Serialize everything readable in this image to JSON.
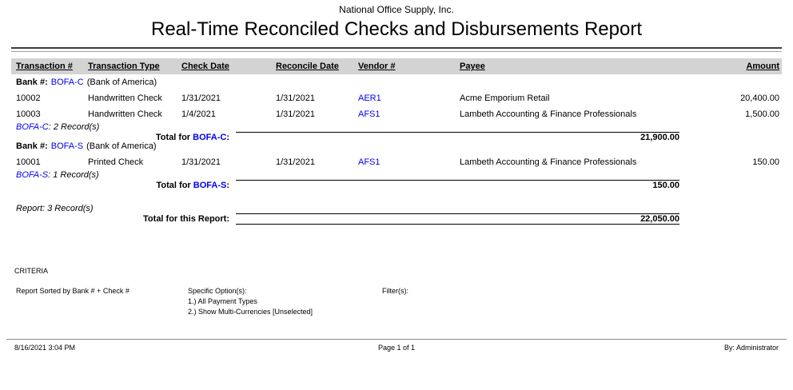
{
  "report": {
    "company": "National Office Supply, Inc.",
    "title": "Real-Time Reconciled Checks and Disbursements Report"
  },
  "colors": {
    "link_blue": "#0000f0",
    "header_band_gray": "#d3d3d3"
  },
  "table": {
    "columns": [
      "Transaction #",
      "Transaction Type",
      "Check Date",
      "Reconcile Date",
      "Vendor #",
      "Payee",
      "Amount"
    ]
  },
  "banks": [
    {
      "label": "Bank #:",
      "code": "BOFA-C",
      "name": "(Bank of America)",
      "rows": [
        {
          "transaction_no": "10002",
          "type": "Handwritten Check",
          "check_date": "1/31/2021",
          "reconcile_date": "1/31/2021",
          "vendor_no": "AER1",
          "payee": "Acme Emporium Retail",
          "amount": "20,400.00"
        },
        {
          "transaction_no": "10003",
          "type": "Handwritten Check",
          "check_date": "1/4/2021",
          "reconcile_date": "1/31/2021",
          "vendor_no": "AFS1",
          "payee": "Lambeth Accounting & Finance Professionals",
          "amount": "1,500.00"
        }
      ],
      "records": {
        "code": "BOFA-C",
        "text": ": 2 Record(s)"
      },
      "total": {
        "label": "Total for",
        "code": "BOFA-C",
        "suffix": ":",
        "amount": "21,900.00"
      }
    },
    {
      "label": "Bank #:",
      "code": "BOFA-S",
      "name": "(Bank of America)",
      "rows": [
        {
          "transaction_no": "10001",
          "type": "Printed Check",
          "check_date": "1/31/2021",
          "reconcile_date": "1/31/2021",
          "vendor_no": "AFS1",
          "payee": "Lambeth Accounting & Finance Professionals",
          "amount": "150.00"
        }
      ],
      "records": {
        "code": "BOFA-S",
        "text": ": 1 Record(s)"
      },
      "total": {
        "label": "Total for",
        "code": "BOFA-S",
        "suffix": ":",
        "amount": "150.00"
      }
    }
  ],
  "report_summary": {
    "records": "Report: 3 Record(s)",
    "total_label": "Total for this Report:",
    "total_amount": "22,050.00"
  },
  "criteria": {
    "heading": "CRITERIA",
    "sort": "Report Sorted by Bank # + Check #",
    "options_label": "Specific Option(s):",
    "options": [
      "1.) All Payment Types",
      "2.) Show Multi-Currencies [Unselected]"
    ],
    "filters_label": "Filter(s):"
  },
  "footer": {
    "generated": "8/16/2021 3:04 PM",
    "page": "Page 1 of 1",
    "by": "By: Administrator"
  }
}
